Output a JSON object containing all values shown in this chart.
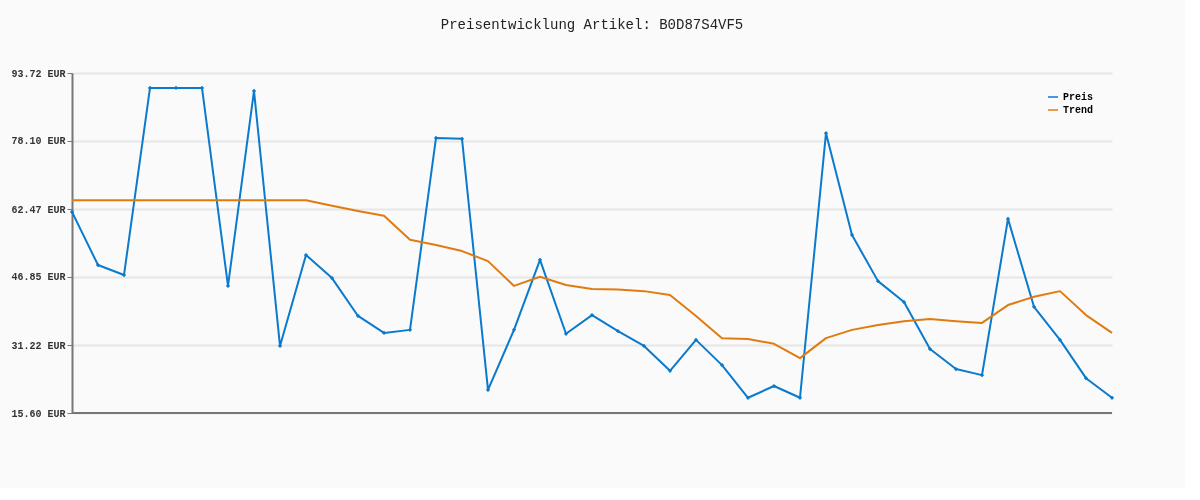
{
  "chart_data": {
    "type": "line",
    "title": "Preisentwicklung Artikel: B0D87S4VF5",
    "categories": [
      null,
      null,
      null,
      null,
      null,
      null,
      null,
      null,
      null,
      null,
      null,
      null,
      null,
      null,
      null,
      null,
      null,
      null,
      null,
      null,
      null,
      null,
      null,
      null,
      null,
      null,
      null,
      null,
      null,
      null,
      null,
      null,
      null,
      null,
      null,
      null,
      null,
      null,
      null,
      null,
      null
    ],
    "series": [
      {
        "name": "Preis",
        "color": "#0a7acd",
        "marker": "diamond",
        "values": [
          61.8,
          49.6,
          47.3,
          90.3,
          90.3,
          90.3,
          44.8,
          89.6,
          31.0,
          51.9,
          46.6,
          37.9,
          34.0,
          34.7,
          78.8,
          78.6,
          20.9,
          34.7,
          50.8,
          33.8,
          38.1,
          34.4,
          31.0,
          25.3,
          32.4,
          26.6,
          19.1,
          21.8,
          19.1,
          79.9,
          56.5,
          45.9,
          41.1,
          30.3,
          25.7,
          24.3,
          60.2,
          40.0,
          32.4,
          23.6,
          19.1
        ]
      },
      {
        "name": "Trend",
        "color": "#e07b10",
        "marker": "none",
        "values": [
          64.5,
          64.5,
          64.5,
          64.5,
          64.5,
          64.5,
          64.5,
          64.5,
          64.5,
          64.5,
          63.2,
          62.0,
          60.9,
          55.4,
          54.2,
          52.8,
          50.5,
          44.8,
          46.9,
          45.0,
          44.1,
          44.0,
          43.6,
          42.7,
          37.9,
          32.8,
          32.6,
          31.5,
          28.2,
          32.8,
          34.7,
          35.8,
          36.7,
          37.2,
          36.7,
          36.3,
          40.4,
          42.3,
          43.6,
          38.1,
          34.0
        ]
      }
    ],
    "ylim": [
      15.6,
      93.72
    ],
    "yticks": [
      {
        "value": 15.6,
        "label": "15.60 EUR"
      },
      {
        "value": 31.22,
        "label": "31.22 EUR"
      },
      {
        "value": 46.85,
        "label": "46.85 EUR"
      },
      {
        "value": 62.47,
        "label": "62.47 EUR"
      },
      {
        "value": 78.1,
        "label": "78.10 EUR"
      },
      {
        "value": 93.72,
        "label": "93.72 EUR"
      }
    ],
    "grid": "y",
    "legend": "top right",
    "tick_labels": "y",
    "line_style": "solid"
  }
}
